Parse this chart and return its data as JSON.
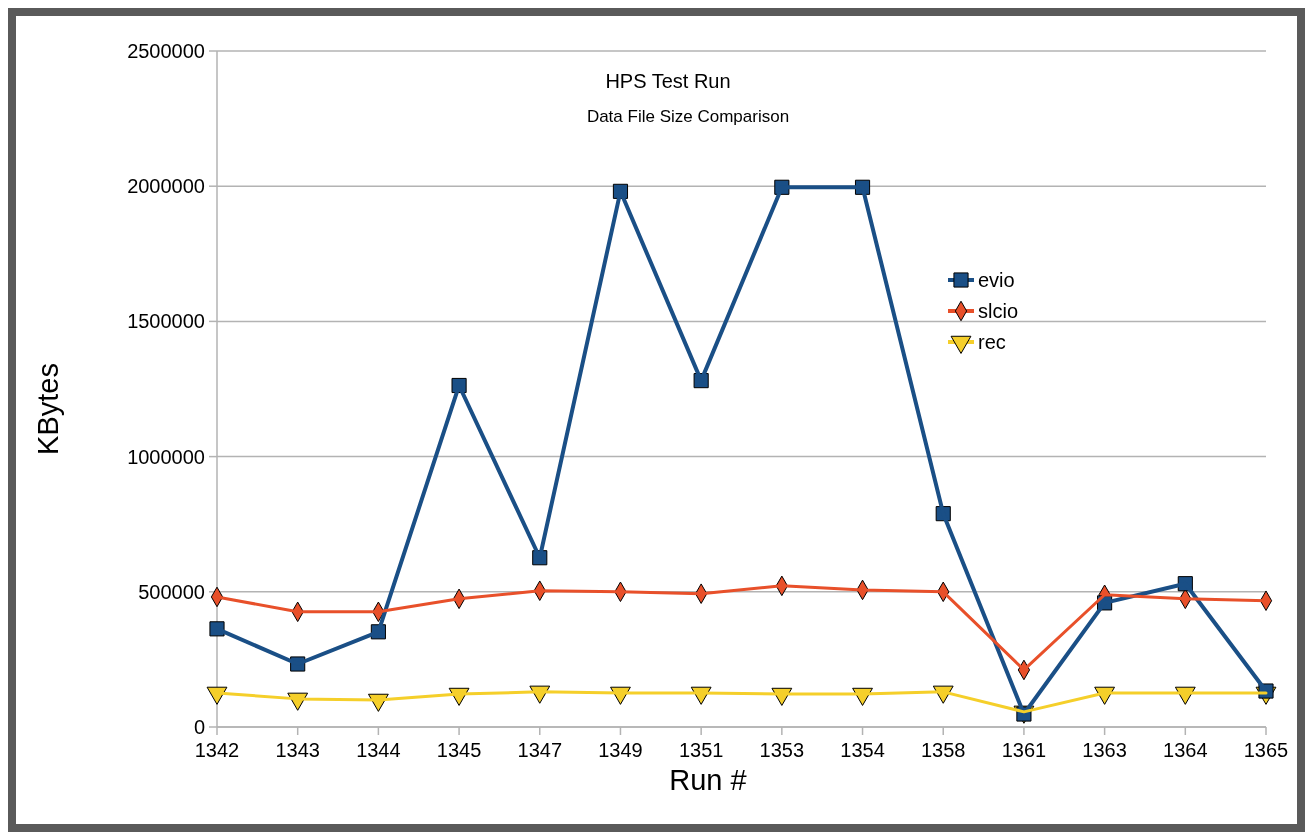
{
  "chart_data": {
    "type": "line",
    "title": "HPS Test Run",
    "subtitle": "Data File Size Comparison",
    "xlabel": "Run #",
    "ylabel": "KBytes",
    "categories": [
      "1342",
      "1343",
      "1344",
      "1345",
      "1347",
      "1349",
      "1351",
      "1353",
      "1354",
      "1358",
      "1361",
      "1363",
      "1364",
      "1365"
    ],
    "series": [
      {
        "name": "evio",
        "color": "#1a4f86",
        "marker": "square",
        "values": [
          363000,
          233000,
          352000,
          1263000,
          626000,
          1981000,
          1281000,
          1996000,
          1996000,
          789000,
          48000,
          459000,
          530000,
          133000
        ]
      },
      {
        "name": "slcio",
        "color": "#e8502a",
        "marker": "diamond",
        "values": [
          481000,
          426000,
          426000,
          474000,
          504000,
          500000,
          493000,
          522000,
          507000,
          500000,
          211000,
          489000,
          474000,
          467000
        ]
      },
      {
        "name": "rec",
        "color": "#f5cf2a",
        "marker": "triangle",
        "values": [
          126000,
          104000,
          100000,
          122000,
          130000,
          126000,
          126000,
          122000,
          122000,
          130000,
          56000,
          126000,
          126000,
          126000
        ]
      }
    ],
    "ylim": [
      0,
      2500000
    ],
    "yticks": [
      0,
      500000,
      1000000,
      1500000,
      2000000,
      2500000
    ],
    "grid": "y",
    "legend": "right"
  }
}
